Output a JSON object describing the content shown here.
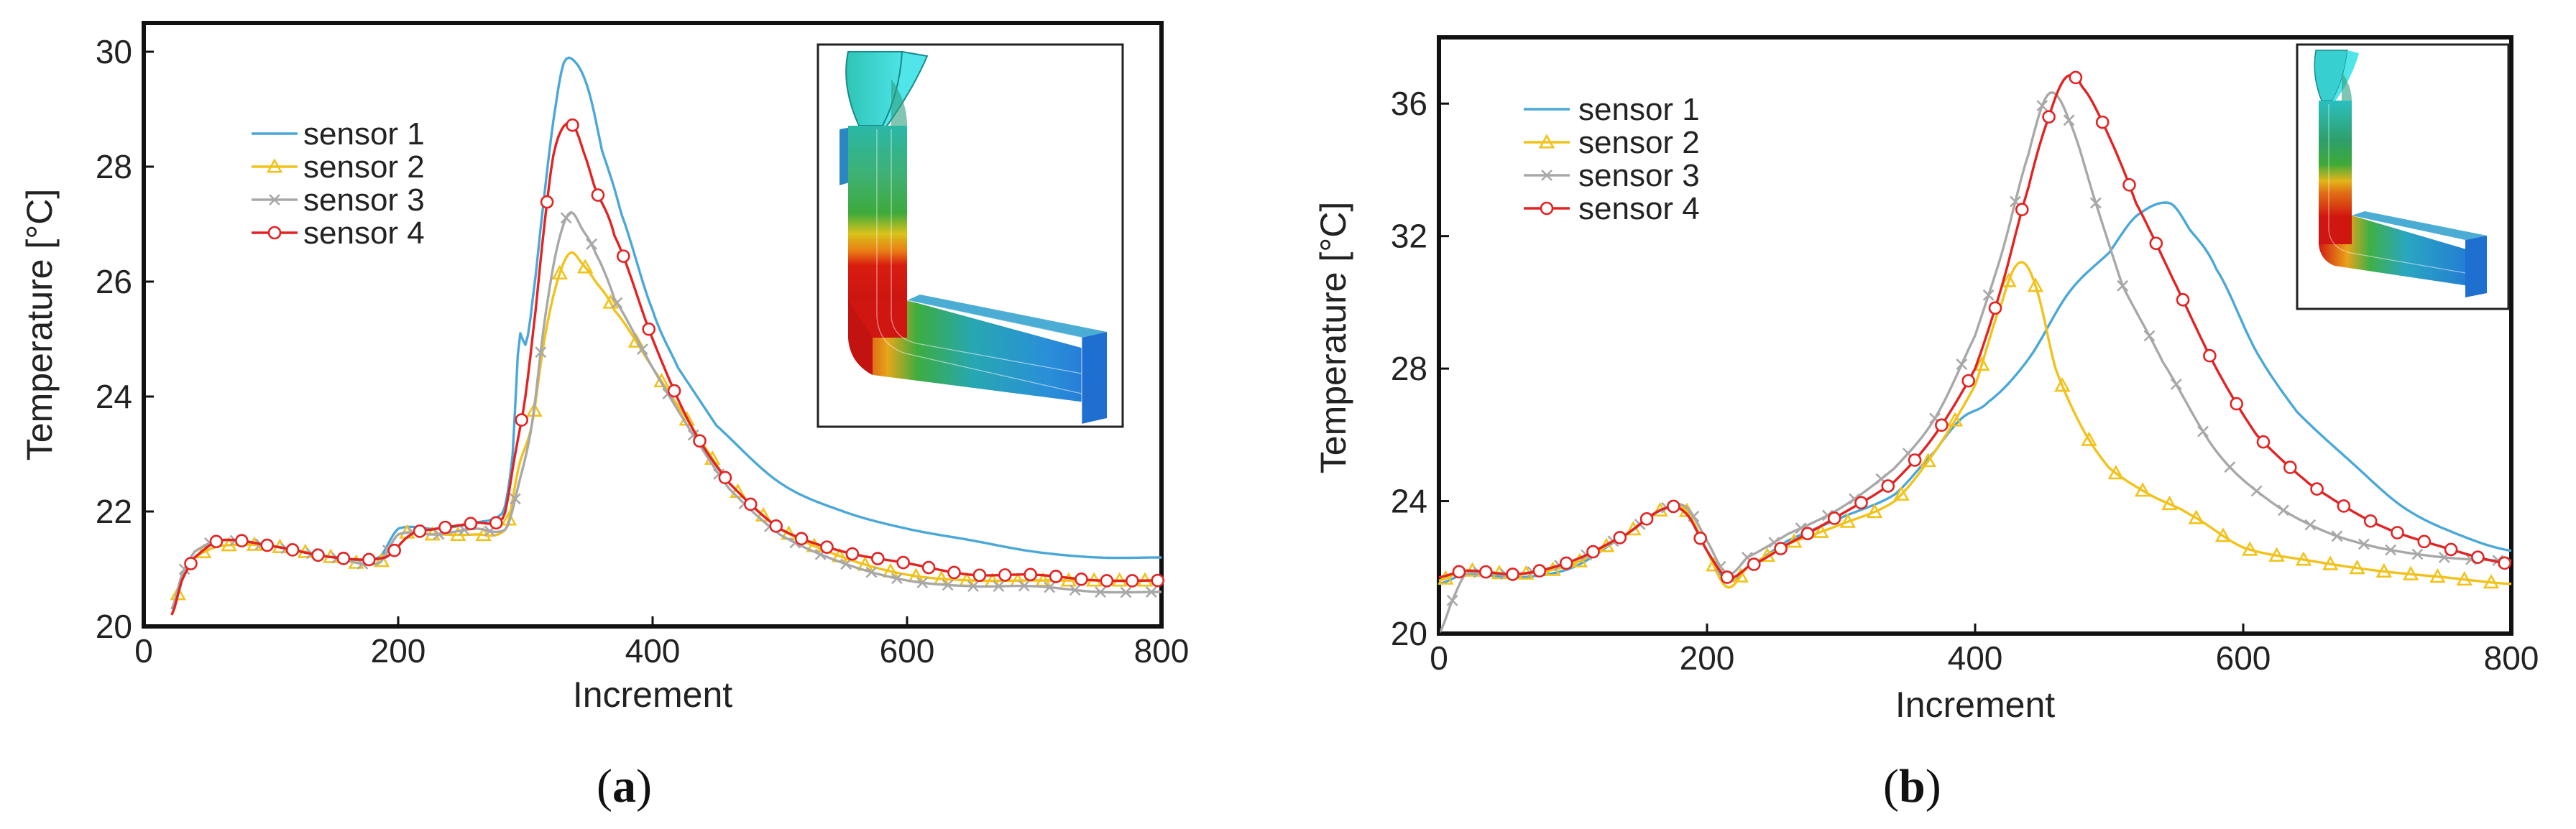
{
  "colors": {
    "sensor1": "#4aa8d8",
    "sensor2": "#f2c21b",
    "sensor3": "#a8a8a8",
    "sensor4": "#e32222"
  },
  "chart_data": [
    {
      "type": "line",
      "panel_label_left": "(",
      "panel_label_letter": "a",
      "panel_label_right": ")",
      "xlabel": "Increment",
      "ylabel": "Temperature [°C]",
      "xlim": [
        0,
        800
      ],
      "ylim": [
        20,
        30.5
      ],
      "xticks": [
        0,
        200,
        400,
        600,
        800
      ],
      "yticks": [
        20,
        22,
        24,
        26,
        28,
        30
      ],
      "legend": "top-left",
      "inset": "top-right",
      "series": [
        {
          "name": "sensor 1",
          "marker": "none",
          "color_key": "sensor1",
          "points": [
            [
              22,
              20.3
            ],
            [
              30,
              20.9
            ],
            [
              40,
              21.3
            ],
            [
              60,
              21.5
            ],
            [
              100,
              21.4
            ],
            [
              150,
              21.2
            ],
            [
              185,
              21.2
            ],
            [
              200,
              21.7
            ],
            [
              230,
              21.7
            ],
            [
              260,
              21.8
            ],
            [
              283,
              22.0
            ],
            [
              290,
              23.0
            ],
            [
              295,
              25.0
            ],
            [
              300,
              24.9
            ],
            [
              305,
              25.6
            ],
            [
              315,
              27.5
            ],
            [
              322,
              28.8
            ],
            [
              330,
              29.8
            ],
            [
              340,
              29.8
            ],
            [
              350,
              29.3
            ],
            [
              360,
              28.3
            ],
            [
              375,
              27.2
            ],
            [
              400,
              25.5
            ],
            [
              420,
              24.5
            ],
            [
              450,
              23.5
            ],
            [
              500,
              22.5
            ],
            [
              550,
              22.0
            ],
            [
              600,
              21.7
            ],
            [
              650,
              21.5
            ],
            [
              700,
              21.3
            ],
            [
              750,
              21.2
            ],
            [
              800,
              21.2
            ]
          ]
        },
        {
          "name": "sensor 2",
          "marker": "triangle",
          "color_key": "sensor2",
          "points": [
            [
              22,
              20.2
            ],
            [
              30,
              20.8
            ],
            [
              40,
              21.2
            ],
            [
              60,
              21.4
            ],
            [
              100,
              21.4
            ],
            [
              150,
              21.2
            ],
            [
              185,
              21.1
            ],
            [
              200,
              21.6
            ],
            [
              230,
              21.6
            ],
            [
              260,
              21.6
            ],
            [
              285,
              21.7
            ],
            [
              295,
              22.8
            ],
            [
              305,
              23.5
            ],
            [
              315,
              25.0
            ],
            [
              325,
              26.0
            ],
            [
              335,
              26.5
            ],
            [
              345,
              26.3
            ],
            [
              355,
              26.0
            ],
            [
              370,
              25.5
            ],
            [
              400,
              24.5
            ],
            [
              430,
              23.5
            ],
            [
              460,
              22.5
            ],
            [
              500,
              21.7
            ],
            [
              550,
              21.2
            ],
            [
              600,
              20.9
            ],
            [
              650,
              20.8
            ],
            [
              700,
              20.8
            ],
            [
              750,
              20.8
            ],
            [
              800,
              20.8
            ]
          ]
        },
        {
          "name": "sensor 3",
          "marker": "cross",
          "color_key": "sensor3",
          "points": [
            [
              22,
              20.3
            ],
            [
              30,
              20.9
            ],
            [
              40,
              21.3
            ],
            [
              60,
              21.5
            ],
            [
              100,
              21.4
            ],
            [
              150,
              21.2
            ],
            [
              185,
              21.1
            ],
            [
              200,
              21.6
            ],
            [
              230,
              21.6
            ],
            [
              260,
              21.7
            ],
            [
              285,
              21.7
            ],
            [
              295,
              22.5
            ],
            [
              305,
              23.5
            ],
            [
              315,
              25.3
            ],
            [
              325,
              26.6
            ],
            [
              335,
              27.2
            ],
            [
              345,
              26.9
            ],
            [
              355,
              26.5
            ],
            [
              370,
              25.7
            ],
            [
              400,
              24.5
            ],
            [
              430,
              23.4
            ],
            [
              460,
              22.4
            ],
            [
              500,
              21.6
            ],
            [
              550,
              21.1
            ],
            [
              600,
              20.8
            ],
            [
              650,
              20.7
            ],
            [
              700,
              20.7
            ],
            [
              750,
              20.6
            ],
            [
              800,
              20.6
            ]
          ]
        },
        {
          "name": "sensor 4",
          "marker": "circle",
          "color_key": "sensor4",
          "points": [
            [
              22,
              20.2
            ],
            [
              30,
              20.8
            ],
            [
              40,
              21.2
            ],
            [
              60,
              21.5
            ],
            [
              100,
              21.4
            ],
            [
              150,
              21.2
            ],
            [
              190,
              21.2
            ],
            [
              210,
              21.6
            ],
            [
              230,
              21.7
            ],
            [
              260,
              21.8
            ],
            [
              283,
              21.9
            ],
            [
              292,
              23.0
            ],
            [
              300,
              24.0
            ],
            [
              308,
              25.5
            ],
            [
              315,
              27.0
            ],
            [
              322,
              28.2
            ],
            [
              330,
              28.7
            ],
            [
              338,
              28.7
            ],
            [
              345,
              28.3
            ],
            [
              355,
              27.6
            ],
            [
              370,
              26.8
            ],
            [
              400,
              25.0
            ],
            [
              430,
              23.5
            ],
            [
              460,
              22.5
            ],
            [
              500,
              21.7
            ],
            [
              550,
              21.3
            ],
            [
              600,
              21.1
            ],
            [
              650,
              20.9
            ],
            [
              700,
              20.9
            ],
            [
              750,
              20.8
            ],
            [
              800,
              20.8
            ]
          ]
        }
      ]
    },
    {
      "type": "line",
      "panel_label_left": "(",
      "panel_label_letter": "b",
      "panel_label_right": ")",
      "xlabel": "Increment",
      "ylabel": "Temperature [°C]",
      "xlim": [
        0,
        800
      ],
      "ylim": [
        20,
        38
      ],
      "xticks": [
        0,
        200,
        400,
        600,
        800
      ],
      "yticks": [
        20,
        24,
        28,
        32,
        36
      ],
      "legend": "top-left",
      "inset": "top-right",
      "series": [
        {
          "name": "sensor 1",
          "marker": "none",
          "color_key": "sensor1",
          "points": [
            [
              0,
              21.5
            ],
            [
              20,
              21.8
            ],
            [
              60,
              21.7
            ],
            [
              100,
              22.0
            ],
            [
              140,
              23.0
            ],
            [
              170,
              23.8
            ],
            [
              185,
              23.6
            ],
            [
              200,
              22.5
            ],
            [
              215,
              21.6
            ],
            [
              230,
              22.0
            ],
            [
              260,
              22.8
            ],
            [
              300,
              23.5
            ],
            [
              340,
              24.2
            ],
            [
              370,
              25.5
            ],
            [
              390,
              26.5
            ],
            [
              410,
              27.0
            ],
            [
              440,
              28.3
            ],
            [
              470,
              30.3
            ],
            [
              500,
              31.5
            ],
            [
              520,
              32.6
            ],
            [
              545,
              33.0
            ],
            [
              560,
              32.2
            ],
            [
              580,
              31.0
            ],
            [
              610,
              28.5
            ],
            [
              640,
              26.7
            ],
            [
              680,
              25.2
            ],
            [
              720,
              23.8
            ],
            [
              760,
              23.0
            ],
            [
              800,
              22.5
            ]
          ]
        },
        {
          "name": "sensor 2",
          "marker": "triangle",
          "color_key": "sensor2",
          "points": [
            [
              0,
              21.6
            ],
            [
              20,
              21.9
            ],
            [
              60,
              21.8
            ],
            [
              100,
              22.1
            ],
            [
              140,
              23.0
            ],
            [
              170,
              23.8
            ],
            [
              185,
              23.7
            ],
            [
              200,
              22.5
            ],
            [
              215,
              21.4
            ],
            [
              230,
              22.0
            ],
            [
              260,
              22.7
            ],
            [
              300,
              23.3
            ],
            [
              340,
              24.0
            ],
            [
              370,
              25.5
            ],
            [
              400,
              27.5
            ],
            [
              420,
              30.0
            ],
            [
              433,
              31.2
            ],
            [
              445,
              30.5
            ],
            [
              460,
              28.0
            ],
            [
              480,
              26.2
            ],
            [
              500,
              25.0
            ],
            [
              530,
              24.2
            ],
            [
              560,
              23.6
            ],
            [
              600,
              22.6
            ],
            [
              650,
              22.2
            ],
            [
              700,
              21.9
            ],
            [
              750,
              21.7
            ],
            [
              800,
              21.5
            ]
          ]
        },
        {
          "name": "sensor 3",
          "marker": "cross",
          "color_key": "sensor3",
          "points": [
            [
              0,
              20.0
            ],
            [
              10,
              21.0
            ],
            [
              20,
              21.8
            ],
            [
              60,
              21.8
            ],
            [
              100,
              22.2
            ],
            [
              140,
              23.0
            ],
            [
              170,
              23.8
            ],
            [
              185,
              23.8
            ],
            [
              200,
              22.8
            ],
            [
              215,
              21.8
            ],
            [
              230,
              22.3
            ],
            [
              260,
              23.0
            ],
            [
              300,
              23.8
            ],
            [
              340,
              25.0
            ],
            [
              370,
              26.5
            ],
            [
              400,
              29.0
            ],
            [
              420,
              31.5
            ],
            [
              440,
              34.5
            ],
            [
              455,
              36.3
            ],
            [
              470,
              35.5
            ],
            [
              490,
              33.0
            ],
            [
              510,
              30.5
            ],
            [
              540,
              28.2
            ],
            [
              580,
              25.5
            ],
            [
              620,
              24.0
            ],
            [
              660,
              23.1
            ],
            [
              700,
              22.6
            ],
            [
              750,
              22.3
            ],
            [
              800,
              22.2
            ]
          ]
        },
        {
          "name": "sensor 4",
          "marker": "circle",
          "color_key": "sensor4",
          "points": [
            [
              0,
              21.7
            ],
            [
              20,
              21.9
            ],
            [
              60,
              21.8
            ],
            [
              100,
              22.2
            ],
            [
              140,
              23.0
            ],
            [
              170,
              23.8
            ],
            [
              185,
              23.6
            ],
            [
              200,
              22.5
            ],
            [
              215,
              21.7
            ],
            [
              230,
              22.0
            ],
            [
              260,
              22.7
            ],
            [
              300,
              23.6
            ],
            [
              340,
              24.6
            ],
            [
              370,
              26.0
            ],
            [
              400,
              28.0
            ],
            [
              420,
              30.5
            ],
            [
              440,
              33.5
            ],
            [
              455,
              35.6
            ],
            [
              468,
              36.8
            ],
            [
              480,
              36.5
            ],
            [
              500,
              35.0
            ],
            [
              520,
              33.0
            ],
            [
              550,
              30.5
            ],
            [
              580,
              28.0
            ],
            [
              610,
              26.0
            ],
            [
              650,
              24.5
            ],
            [
              700,
              23.3
            ],
            [
              750,
              22.6
            ],
            [
              800,
              22.1
            ]
          ]
        }
      ]
    }
  ]
}
